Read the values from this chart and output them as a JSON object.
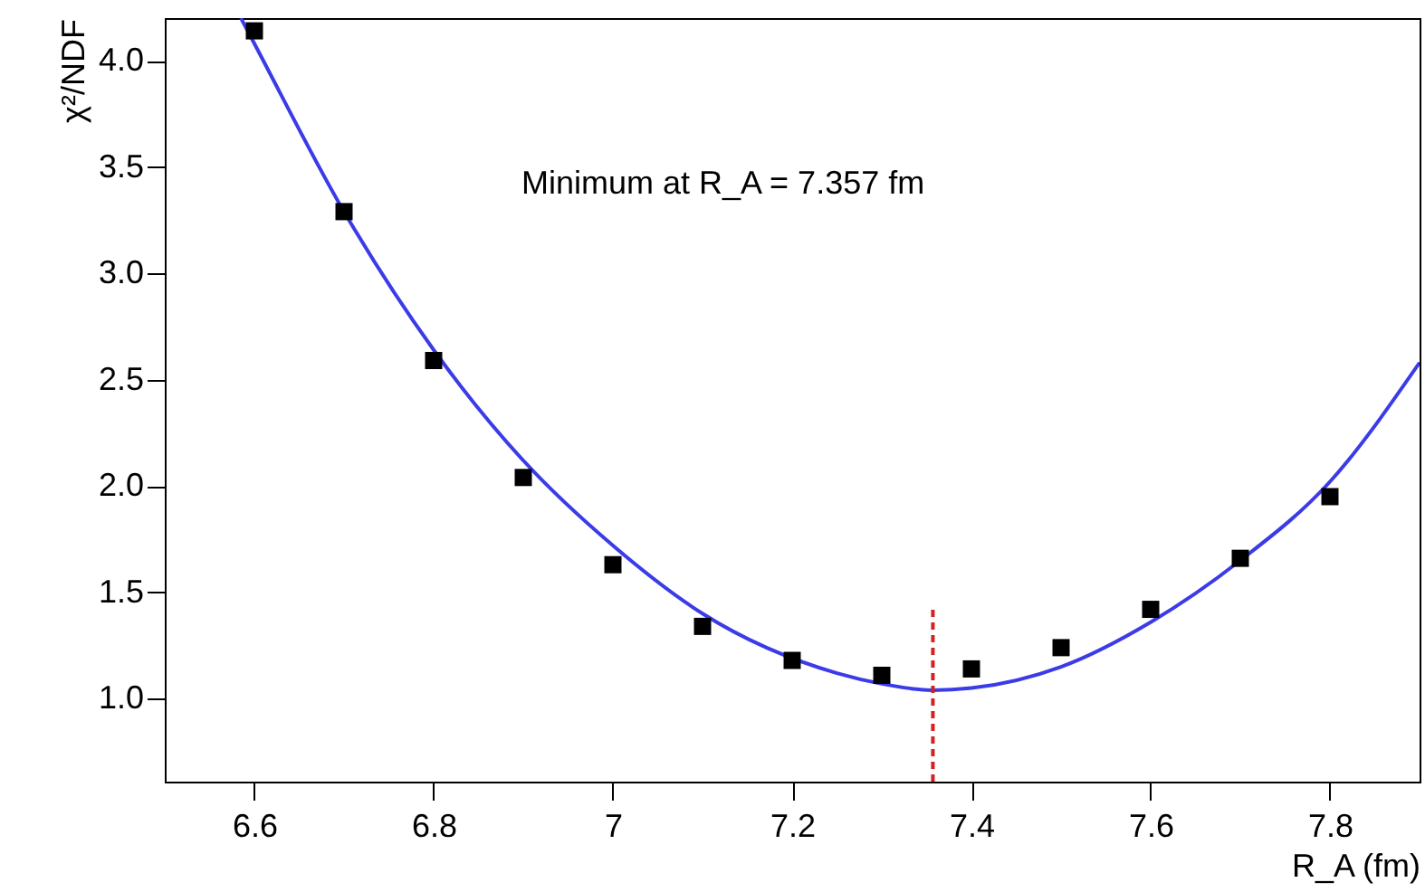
{
  "chart_data": {
    "type": "scatter",
    "xlabel": "R_A (fm)",
    "ylabel": "χ²/NDF",
    "annotations": [
      "Minimum at R_A = 7.357 fm"
    ],
    "xlim": [
      6.5,
      7.9
    ],
    "ylim": [
      0.61,
      4.2
    ],
    "xticks": [
      6.6,
      6.8,
      7,
      7.2,
      7.4,
      7.6,
      7.8
    ],
    "yticks": [
      {
        "value": 1,
        "label": "1.0"
      },
      1.5,
      {
        "value": 2,
        "label": "2.0"
      },
      2.5,
      {
        "value": 3,
        "label": "3.0"
      },
      3.5,
      {
        "value": 4,
        "label": "4.0"
      }
    ],
    "grid": false,
    "series": [
      {
        "type": "line",
        "color": "#3b3be8",
        "marker": "none",
        "line_style": "solid",
        "x": [
          6.585,
          6.6,
          6.7,
          6.8,
          6.9,
          7.0,
          7.1,
          7.25,
          7.3,
          7.357,
          7.4,
          7.5,
          7.6,
          7.7,
          7.8,
          7.9
        ],
        "values": [
          4.2,
          4.08,
          3.29,
          2.64,
          2.12,
          1.72,
          1.4,
          1.12,
          1.07,
          1.04,
          1.05,
          1.15,
          1.36,
          1.65,
          2.02,
          2.58
        ]
      },
      {
        "color": "#000000",
        "marker": "square",
        "x": [
          6.6,
          6.7,
          6.8,
          6.9,
          7.0,
          7.1,
          7.2,
          7.3,
          7.4,
          7.5,
          7.6,
          7.7,
          7.8
        ],
        "values": [
          4.14,
          3.29,
          2.59,
          2.04,
          1.63,
          1.34,
          1.18,
          1.11,
          1.14,
          1.24,
          1.42,
          1.66,
          1.95
        ]
      },
      {
        "type": "line",
        "color": "#d42020",
        "marker": "none",
        "line_style": "dashed",
        "x": [
          7.357,
          7.357
        ],
        "values": [
          0.61,
          1.42
        ]
      }
    ]
  }
}
